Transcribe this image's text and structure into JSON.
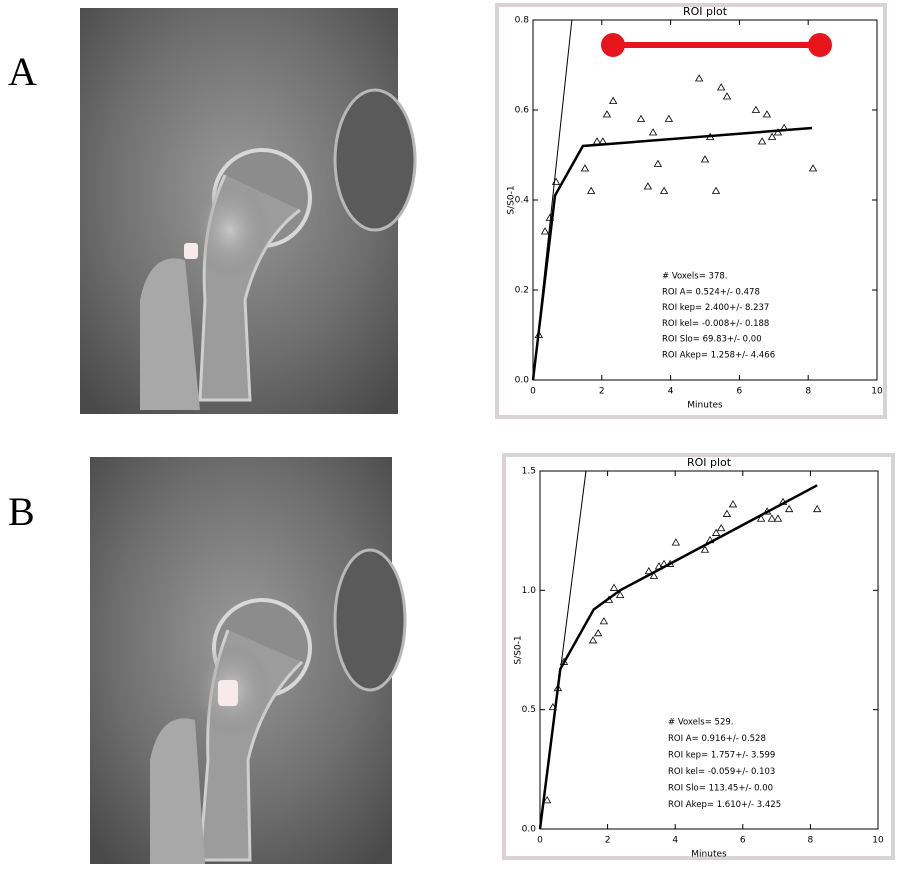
{
  "panels": [
    {
      "label": "A"
    },
    {
      "label": "B"
    }
  ],
  "chart_data": [
    {
      "type": "scatter",
      "title": "ROI plot",
      "x_label": "Minutes",
      "y_label": "S/S0-1",
      "xlim": [
        0,
        10
      ],
      "xticks": [
        0,
        2,
        4,
        6,
        8,
        10
      ],
      "ylim": [
        0,
        0.8
      ],
      "yticks": [
        {
          "value": 0,
          "label": "0.0"
        },
        {
          "value": 0.2,
          "label": "0.2"
        },
        {
          "value": 0.4,
          "label": "0.4"
        },
        {
          "value": 0.6,
          "label": "0.6"
        },
        {
          "value": 0.8,
          "label": "0.8"
        }
      ],
      "series": [
        {
          "type": "scatter",
          "marker": "triangle",
          "color": "#000000",
          "x": [
            0.17,
            0.35,
            0.49,
            0.67,
            1.51,
            1.69,
            1.86,
            2.03,
            2.15,
            2.33,
            3.14,
            3.34,
            3.49,
            3.63,
            3.81,
            3.95,
            4.83,
            5.0,
            5.15,
            5.32,
            5.47,
            5.64,
            6.48,
            6.66,
            6.8,
            6.95,
            7.12,
            7.3,
            8.14
          ],
          "values": [
            0.1,
            0.33,
            0.36,
            0.44,
            0.47,
            0.42,
            0.53,
            0.53,
            0.59,
            0.62,
            0.58,
            0.43,
            0.55,
            0.48,
            0.42,
            0.58,
            0.67,
            0.49,
            0.54,
            0.42,
            0.65,
            0.63,
            0.6,
            0.53,
            0.59,
            0.54,
            0.55,
            0.56,
            0.47
          ]
        },
        {
          "type": "line",
          "color": "#000000",
          "width": 2.5,
          "x": [
            0,
            0.64,
            1.45,
            8.11
          ],
          "values": [
            0,
            0.41,
            0.52,
            0.56
          ]
        },
        {
          "type": "line",
          "color": "#000000",
          "width": 1,
          "x": [
            0,
            1.13
          ],
          "values": [
            0,
            0.8
          ]
        }
      ],
      "annotations": [
        "# Voxels= 378.",
        "ROI A= 0.524+/- 0.478",
        "ROI kep= 2.400+/- 8.237",
        "ROI kel= -0.008+/- 0.188",
        "ROI Slo= 69.83+/- 0.00",
        "ROI Akep= 1.258+/- 4.466"
      ]
    },
    {
      "type": "scatter",
      "title": "ROI plot",
      "x_label": "Minutes",
      "y_label": "S/S0-1",
      "xlim": [
        0,
        10
      ],
      "xticks": [
        0,
        2,
        4,
        6,
        8,
        10
      ],
      "ylim": [
        0,
        1.5
      ],
      "yticks": [
        {
          "value": 0,
          "label": "0.0"
        },
        {
          "value": 0.5,
          "label": "0.5"
        },
        {
          "value": 1,
          "label": "1.0"
        },
        {
          "value": 1.5,
          "label": "1.5"
        }
      ],
      "series": [
        {
          "type": "scatter",
          "marker": "triangle",
          "color": "#000000",
          "x": [
            0.21,
            0.38,
            0.53,
            0.71,
            1.57,
            1.72,
            1.89,
            2.04,
            2.19,
            2.37,
            3.22,
            3.37,
            3.52,
            3.67,
            3.85,
            4.02,
            4.88,
            5.03,
            5.21,
            5.36,
            5.53,
            5.71,
            6.54,
            6.72,
            6.86,
            7.04,
            7.19,
            7.37,
            8.2
          ],
          "values": [
            0.12,
            0.51,
            0.59,
            0.7,
            0.79,
            0.82,
            0.87,
            0.96,
            1.01,
            0.98,
            1.08,
            1.06,
            1.1,
            1.11,
            1.11,
            1.2,
            1.17,
            1.21,
            1.24,
            1.26,
            1.32,
            1.36,
            1.3,
            1.33,
            1.3,
            1.3,
            1.37,
            1.34,
            1.34
          ]
        },
        {
          "type": "line",
          "color": "#000000",
          "width": 2.5,
          "x": [
            0,
            0.6,
            1.59,
            2.37,
            8.2
          ],
          "values": [
            0,
            0.67,
            0.92,
            1.0,
            1.44
          ]
        },
        {
          "type": "line",
          "color": "#000000",
          "width": 1,
          "x": [
            0,
            1.36
          ],
          "values": [
            0,
            1.5
          ]
        }
      ],
      "annotations": [
        "# Voxels= 529.",
        "ROI A= 0.916+/- 0.528",
        "ROI kep= 1.757+/- 3.599",
        "ROI kel= -0.059+/- 0.103",
        "ROI Slo= 113.45+/- 0.00",
        "ROI Akep= 1.610+/- 3.425"
      ]
    }
  ]
}
